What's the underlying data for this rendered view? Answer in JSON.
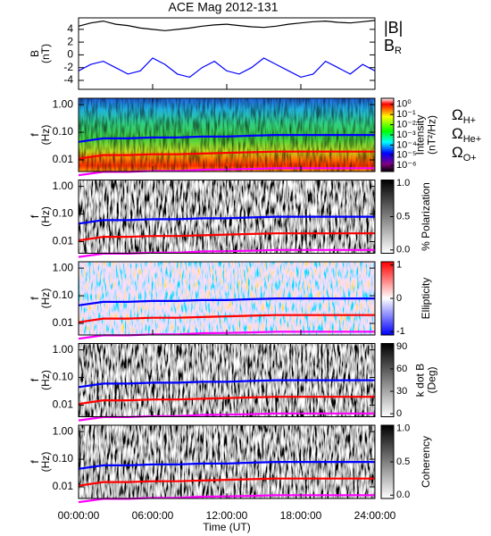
{
  "chart_data": [
    {
      "type": "line",
      "title": "ACE Mag 2012-131",
      "ylabel": [
        "B",
        "(nT)"
      ],
      "x": [
        0,
        1,
        2,
        3,
        4,
        5,
        6,
        7,
        8,
        9,
        10,
        11,
        12,
        13,
        14,
        15,
        16,
        17,
        18,
        19,
        20,
        21,
        22,
        23,
        24
      ],
      "xlim": [
        0,
        24
      ],
      "ylim": [
        -5.4,
        5.8
      ],
      "yticks": [
        4,
        2,
        0,
        -2,
        -4
      ],
      "legend": true,
      "series": [
        {
          "name": "|B|",
          "color": "#000000",
          "values": [
            4.5,
            5.0,
            5.3,
            4.8,
            4.6,
            4.2,
            4.0,
            3.8,
            4.0,
            4.2,
            4.5,
            4.7,
            4.8,
            4.6,
            4.4,
            4.3,
            4.5,
            4.8,
            5.0,
            5.2,
            5.3,
            5.1,
            5.0,
            5.2,
            5.4
          ]
        },
        {
          "name": "BR",
          "color": "#0000ff",
          "values": [
            -2.5,
            -1.5,
            -1.0,
            -2.0,
            -3.0,
            -2.5,
            -0.5,
            -1.5,
            -3.0,
            -3.5,
            -2.0,
            -1.0,
            -2.5,
            -3.0,
            -2.0,
            -0.5,
            -1.5,
            -2.5,
            -3.5,
            -3.0,
            -1.0,
            -2.0,
            -3.0,
            -1.5,
            -2.5
          ]
        }
      ]
    },
    {
      "type": "spectrogram",
      "ylabel": [
        "f",
        "(Hz)"
      ],
      "ylog": true,
      "legend": true,
      "x": [
        0,
        2,
        4,
        6,
        8,
        10,
        12,
        14,
        16,
        18,
        20,
        22,
        24
      ],
      "xlim": [
        0,
        24
      ],
      "ylim": [
        0.0038,
        1.7
      ],
      "yticks": [
        {
          "value": 1,
          "label": "1.00"
        },
        {
          "value": 0.1,
          "label": "0.10"
        },
        {
          "value": 0.01,
          "label": "0.01"
        }
      ],
      "colorbar": {
        "label": [
          "Intensity",
          "(nT²/Hz)"
        ],
        "log": true,
        "lim": [
          -6.6,
          0.6
        ],
        "ticks": [
          {
            "value": 0,
            "label": "10⁰"
          },
          {
            "value": -1,
            "label": "10⁻¹"
          },
          {
            "value": -2,
            "label": "10⁻²"
          },
          {
            "value": -3,
            "label": "10⁻³"
          },
          {
            "value": -4,
            "label": "10⁻⁴"
          },
          {
            "value": -5,
            "label": "10⁻⁵"
          },
          {
            "value": -6,
            "label": "10⁻⁶"
          }
        ]
      },
      "series": [
        {
          "name": "ΩH+",
          "color": "#0000ff",
          "values": [
            0.045,
            0.06,
            0.06,
            0.065,
            0.065,
            0.07,
            0.07,
            0.075,
            0.08,
            0.08,
            0.08,
            0.08,
            0.08
          ]
        },
        {
          "name": "ΩHe+",
          "color": "#ff0000",
          "values": [
            0.011,
            0.015,
            0.015,
            0.016,
            0.016,
            0.017,
            0.018,
            0.019,
            0.02,
            0.02,
            0.02,
            0.02,
            0.02
          ]
        },
        {
          "name": "ΩO+",
          "color": "#ff00ff",
          "values": [
            0.0028,
            0.0037,
            0.0037,
            0.004,
            0.004,
            0.0044,
            0.0045,
            0.0047,
            0.005,
            0.005,
            0.005,
            0.005,
            0.005
          ]
        }
      ]
    },
    {
      "type": "spectrogram",
      "ylabel": [
        "f",
        "(Hz)"
      ],
      "ylog": true,
      "x": [
        0,
        2,
        4,
        6,
        8,
        10,
        12,
        14,
        16,
        18,
        20,
        22,
        24
      ],
      "xlim": [
        0,
        24
      ],
      "ylim": [
        0.0038,
        1.7
      ],
      "yticks": [
        {
          "value": 1,
          "label": "1.00"
        },
        {
          "value": 0.1,
          "label": "0.10"
        },
        {
          "value": 0.01,
          "label": "0.01"
        }
      ],
      "colorbar": {
        "label": [
          "% Polarization"
        ],
        "lim": [
          -0.05,
          1.05
        ],
        "ticks": [
          {
            "value": 0,
            "label": "0.0"
          },
          {
            "value": 0.5,
            "label": "0.5"
          },
          {
            "value": 1,
            "label": "1.0"
          }
        ]
      },
      "series": [
        {
          "color": "#0000ff",
          "values": [
            0.045,
            0.06,
            0.06,
            0.065,
            0.065,
            0.07,
            0.07,
            0.075,
            0.08,
            0.08,
            0.08,
            0.08,
            0.08
          ]
        },
        {
          "color": "#ff0000",
          "values": [
            0.011,
            0.015,
            0.015,
            0.016,
            0.016,
            0.017,
            0.018,
            0.019,
            0.02,
            0.02,
            0.02,
            0.02,
            0.02
          ]
        },
        {
          "color": "#ff00ff",
          "values": [
            0.0028,
            0.0037,
            0.0037,
            0.004,
            0.004,
            0.0044,
            0.0045,
            0.0047,
            0.005,
            0.005,
            0.005,
            0.005,
            0.005
          ]
        }
      ]
    },
    {
      "type": "spectrogram",
      "ylabel": [
        "f",
        "(Hz)"
      ],
      "ylog": true,
      "x": [
        0,
        2,
        4,
        6,
        8,
        10,
        12,
        14,
        16,
        18,
        20,
        22,
        24
      ],
      "xlim": [
        0,
        24
      ],
      "ylim": [
        0.0038,
        1.7
      ],
      "yticks": [
        {
          "value": 1,
          "label": "1.00"
        },
        {
          "value": 0.1,
          "label": "0.10"
        },
        {
          "value": 0.01,
          "label": "0.01"
        }
      ],
      "colorbar": {
        "label": [
          "Ellipticity"
        ],
        "lim": [
          -1.1,
          1.1
        ],
        "ticks": [
          1,
          0,
          -1
        ]
      },
      "series": [
        {
          "color": "#0000ff",
          "values": [
            0.045,
            0.06,
            0.06,
            0.065,
            0.065,
            0.07,
            0.07,
            0.075,
            0.08,
            0.08,
            0.08,
            0.08,
            0.08
          ]
        },
        {
          "color": "#ff0000",
          "values": [
            0.011,
            0.015,
            0.015,
            0.016,
            0.016,
            0.017,
            0.018,
            0.019,
            0.02,
            0.02,
            0.02,
            0.02,
            0.02
          ]
        },
        {
          "color": "#ff00ff",
          "values": [
            0.0028,
            0.0037,
            0.0037,
            0.004,
            0.004,
            0.0044,
            0.0045,
            0.0047,
            0.005,
            0.005,
            0.005,
            0.005,
            0.005
          ]
        }
      ]
    },
    {
      "type": "spectrogram",
      "ylabel": [
        "f",
        "(Hz)"
      ],
      "ylog": true,
      "x": [
        0,
        2,
        4,
        6,
        8,
        10,
        12,
        14,
        16,
        18,
        20,
        22,
        24
      ],
      "xlim": [
        0,
        24
      ],
      "ylim": [
        0.0038,
        1.7
      ],
      "yticks": [
        {
          "value": 1,
          "label": "1.00"
        },
        {
          "value": 0.1,
          "label": "0.10"
        },
        {
          "value": 0.01,
          "label": "0.01"
        }
      ],
      "colorbar": {
        "label": [
          "k dot B",
          "(Deg)"
        ],
        "lim": [
          -4,
          94
        ],
        "ticks": [
          90,
          60,
          30,
          0
        ]
      },
      "series": [
        {
          "color": "#0000ff",
          "values": [
            0.045,
            0.06,
            0.06,
            0.065,
            0.065,
            0.07,
            0.07,
            0.075,
            0.08,
            0.08,
            0.08,
            0.08,
            0.08
          ]
        },
        {
          "color": "#ff0000",
          "values": [
            0.011,
            0.015,
            0.015,
            0.016,
            0.016,
            0.017,
            0.018,
            0.019,
            0.02,
            0.02,
            0.02,
            0.02,
            0.02
          ]
        },
        {
          "color": "#ff00ff",
          "values": [
            0.0028,
            0.0037,
            0.0037,
            0.004,
            0.004,
            0.0044,
            0.0045,
            0.0047,
            0.005,
            0.005,
            0.005,
            0.005,
            0.005
          ]
        }
      ]
    },
    {
      "type": "spectrogram",
      "ylabel": [
        "f",
        "(Hz)"
      ],
      "ylog": true,
      "x": [
        0,
        2,
        4,
        6,
        8,
        10,
        12,
        14,
        16,
        18,
        20,
        22,
        24
      ],
      "xlim": [
        0,
        24
      ],
      "ylim": [
        0.0038,
        1.7
      ],
      "yticks": [
        {
          "value": 1,
          "label": "1.00"
        },
        {
          "value": 0.1,
          "label": "0.10"
        },
        {
          "value": 0.01,
          "label": "0.01"
        }
      ],
      "colorbar": {
        "label": [
          "Coherency"
        ],
        "lim": [
          -0.05,
          1.05
        ],
        "ticks": [
          {
            "value": 0,
            "label": "0.0"
          },
          {
            "value": 0.5,
            "label": "0.5"
          },
          {
            "value": 1,
            "label": "1.0"
          }
        ]
      },
      "xlabel": "Time (UT)",
      "xticks": [
        {
          "value": 0,
          "label": "00:00:00"
        },
        {
          "value": 6,
          "label": "06:00:00"
        },
        {
          "value": 12,
          "label": "12:00:00"
        },
        {
          "value": 18,
          "label": "18:00:00"
        },
        {
          "value": 24,
          "label": "24:00:00"
        }
      ],
      "series": [
        {
          "color": "#0000ff",
          "values": [
            0.045,
            0.06,
            0.06,
            0.065,
            0.065,
            0.07,
            0.07,
            0.075,
            0.08,
            0.08,
            0.08,
            0.08,
            0.08
          ]
        },
        {
          "color": "#ff0000",
          "values": [
            0.011,
            0.015,
            0.015,
            0.016,
            0.016,
            0.017,
            0.018,
            0.019,
            0.02,
            0.02,
            0.02,
            0.02,
            0.02
          ]
        },
        {
          "color": "#ff00ff",
          "values": [
            0.0028,
            0.0037,
            0.0037,
            0.004,
            0.004,
            0.0044,
            0.0045,
            0.0047,
            0.005,
            0.005,
            0.005,
            0.005,
            0.005
          ]
        }
      ]
    }
  ]
}
